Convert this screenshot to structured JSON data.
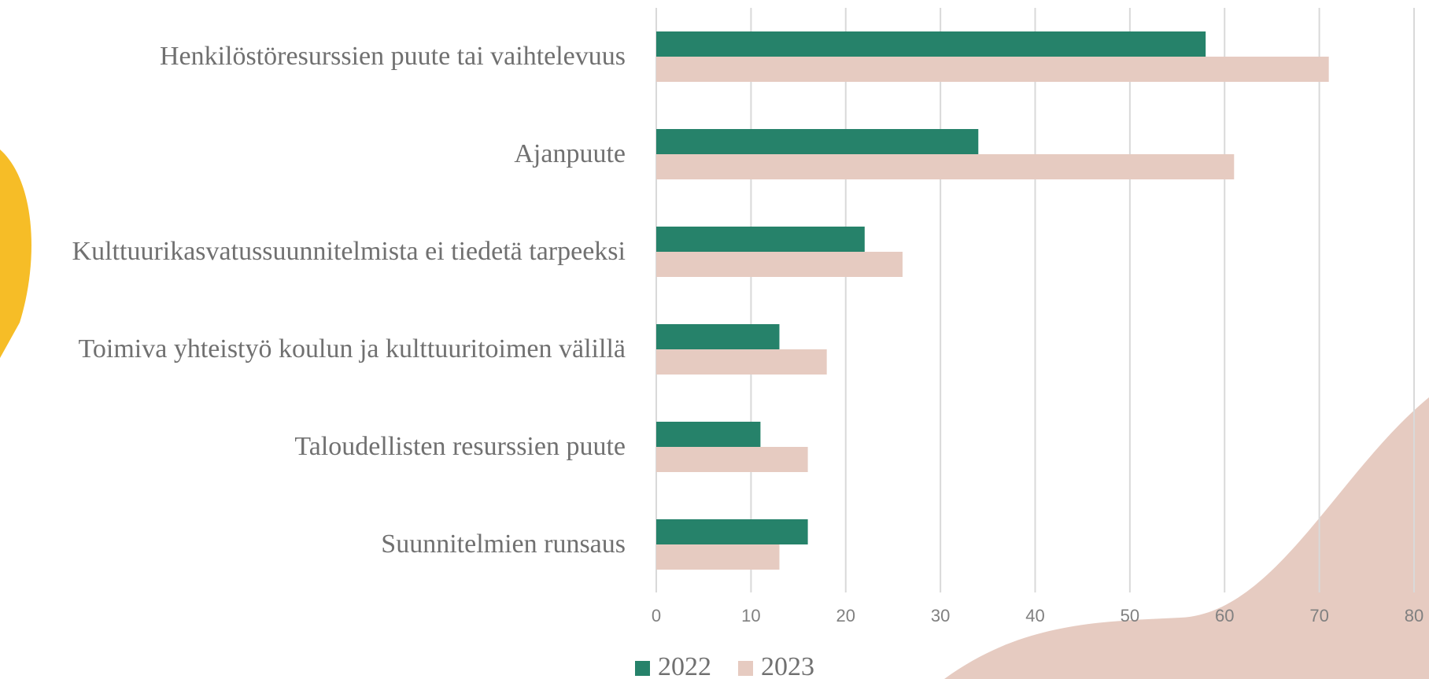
{
  "chart_data": {
    "type": "bar",
    "orientation": "horizontal",
    "categories": [
      "Henkilöstöresurssien puute tai vaihtelevuus",
      "Ajanpuute",
      "Kulttuurikasvatussuunnitelmista ei tiedetä tarpeeksi",
      "Toimiva yhteistyö koulun ja kulttuuritoimen välillä",
      "Taloudellisten resurssien puute",
      "Suunnitelmien runsaus"
    ],
    "series": [
      {
        "name": "2022",
        "color": "#26826a",
        "values": [
          58,
          34,
          22,
          13,
          11,
          16
        ]
      },
      {
        "name": "2023",
        "color": "#e6cbc1",
        "values": [
          71,
          61,
          26,
          18,
          16,
          13
        ]
      }
    ],
    "xlim": [
      0,
      80
    ],
    "xticks": [
      0,
      10,
      20,
      30,
      40,
      50,
      60,
      70,
      80
    ],
    "grid": true,
    "legend": "bottom"
  }
}
